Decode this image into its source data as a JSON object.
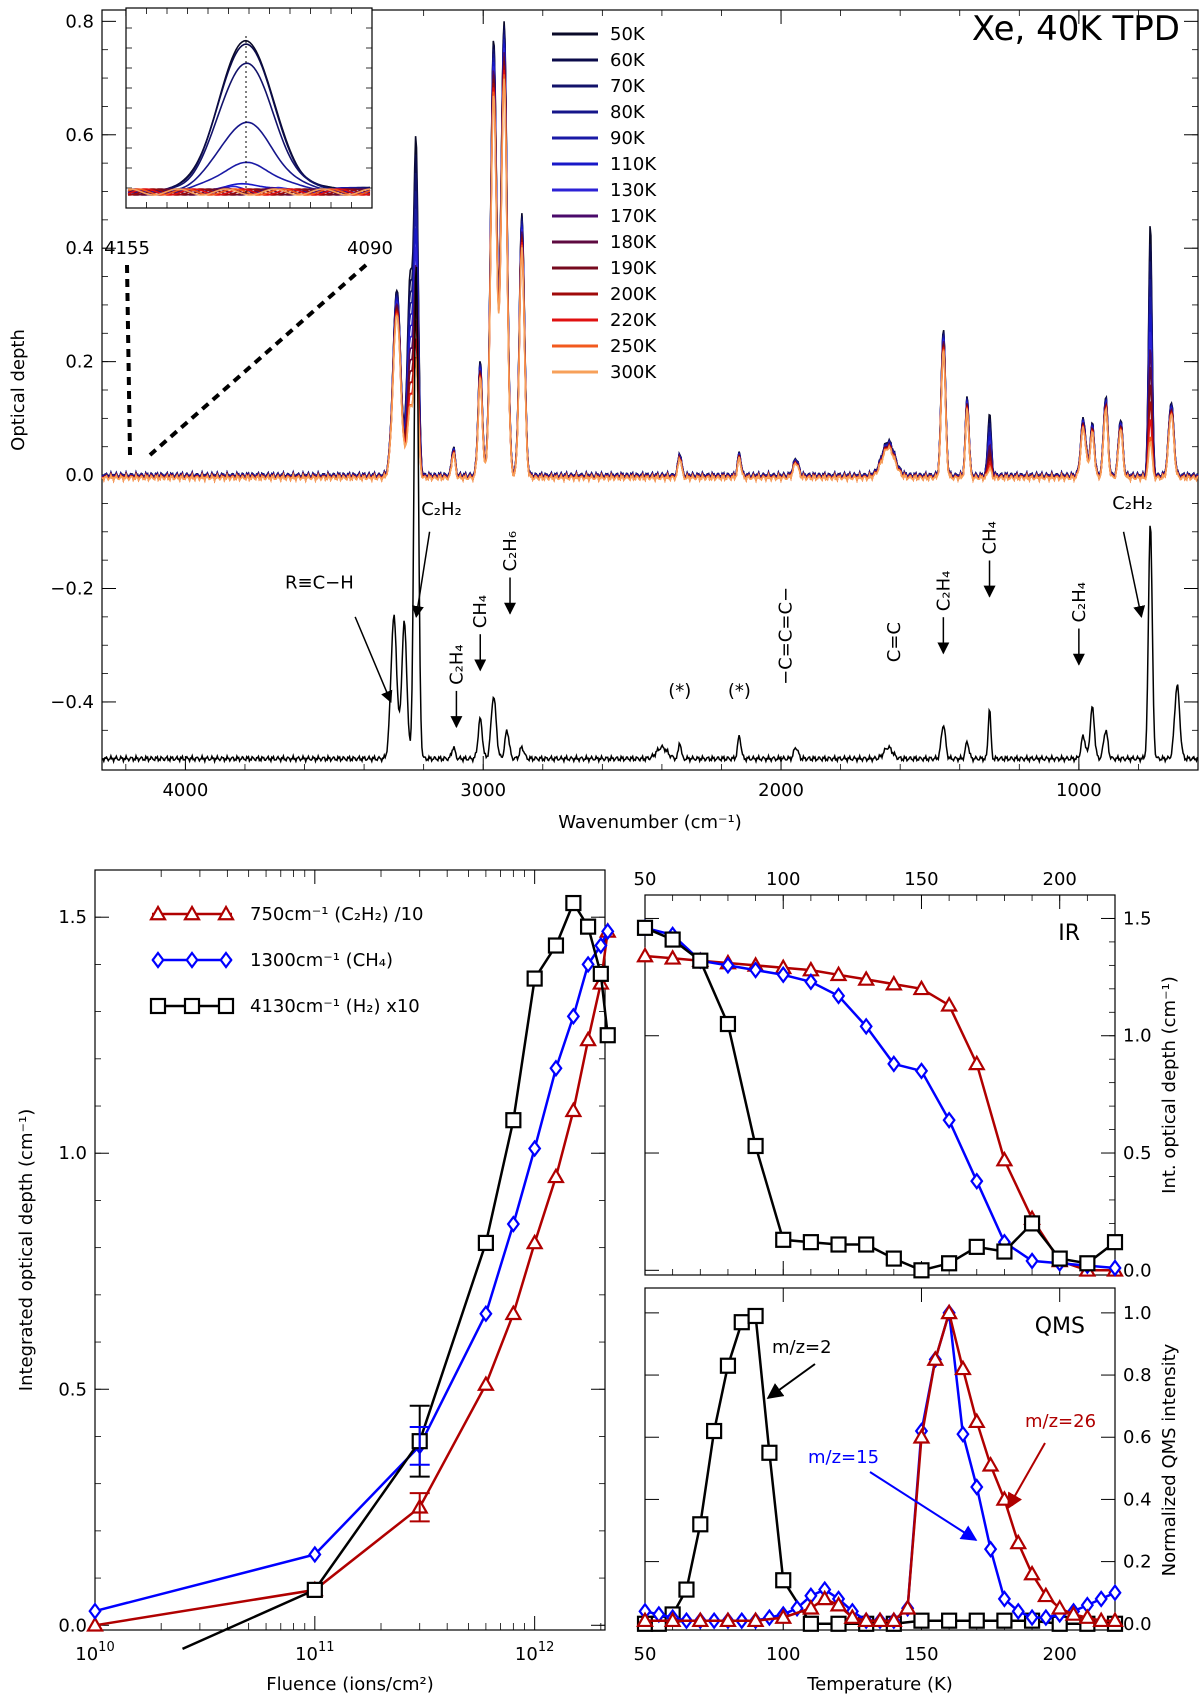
{
  "title": "Xe, 40K TPD",
  "chart_data": [
    {
      "id": "top_spectra",
      "type": "line",
      "xlabel": "Wavenumber (cm⁻¹)",
      "ylabel": "Optical depth",
      "xlim": [
        4280,
        600
      ],
      "ylim": [
        -0.52,
        0.82
      ],
      "xticks": [
        4000,
        3000,
        2000,
        1000
      ],
      "yticks": [
        0.8,
        0.6,
        0.4,
        0.2,
        0.0,
        -0.2,
        -0.4
      ],
      "ytick_labels": [
        "0.8",
        "0.6",
        "0.4",
        "0.2",
        "0.0",
        "−0.2",
        "−0.4"
      ],
      "xtick_labels": [
        "4000",
        "3000",
        "2000",
        "1000"
      ],
      "temperatures": [
        "50K",
        "60K",
        "70K",
        "80K",
        "90K",
        "110K",
        "130K",
        "170K",
        "180K",
        "190K",
        "200K",
        "220K",
        "250K",
        "300K"
      ],
      "colors": [
        "#0a0a28",
        "#0b0b4a",
        "#12126a",
        "#16168a",
        "#1a1aa6",
        "#1818c8",
        "#2c22d6",
        "#4a0a6a",
        "#5e0a40",
        "#760a1e",
        "#a00a0a",
        "#e01010",
        "#f25a1e",
        "#f7a05a"
      ],
      "peaks": [
        {
          "pos": 3290,
          "width": 18,
          "amp": 0.33
        },
        {
          "pos": 3245,
          "width": 14,
          "amp": 0.35
        },
        {
          "pos": 3225,
          "width": 10,
          "amp": 0.55
        },
        {
          "pos": 3100,
          "width": 8,
          "amp": 0.05
        },
        {
          "pos": 3010,
          "width": 10,
          "amp": 0.2
        },
        {
          "pos": 2965,
          "width": 14,
          "amp": 0.77
        },
        {
          "pos": 2930,
          "width": 14,
          "amp": 0.8
        },
        {
          "pos": 2870,
          "width": 12,
          "amp": 0.46
        },
        {
          "pos": 2340,
          "width": 8,
          "amp": 0.04
        },
        {
          "pos": 2140,
          "width": 8,
          "amp": 0.04
        },
        {
          "pos": 1950,
          "width": 12,
          "amp": 0.03
        },
        {
          "pos": 1640,
          "width": 30,
          "amp": 0.06
        },
        {
          "pos": 1455,
          "width": 10,
          "amp": 0.26
        },
        {
          "pos": 1375,
          "width": 8,
          "amp": 0.14
        },
        {
          "pos": 1300,
          "width": 8,
          "amp": 0.11
        },
        {
          "pos": 985,
          "width": 12,
          "amp": 0.1
        },
        {
          "pos": 955,
          "width": 10,
          "amp": 0.09
        },
        {
          "pos": 910,
          "width": 10,
          "amp": 0.14
        },
        {
          "pos": 860,
          "width": 10,
          "amp": 0.1
        },
        {
          "pos": 760,
          "width": 8,
          "amp": 0.45
        },
        {
          "pos": 690,
          "width": 12,
          "amp": 0.13
        }
      ],
      "bottom_spectrum_offset": -0.5,
      "bottom_spectrum_peaks": [
        {
          "pos": 3300,
          "width": 14,
          "amp": 0.25
        },
        {
          "pos": 3265,
          "width": 12,
          "amp": 0.24
        },
        {
          "pos": 3225,
          "width": 10,
          "amp": 0.88
        },
        {
          "pos": 3100,
          "width": 8,
          "amp": 0.02
        },
        {
          "pos": 3010,
          "width": 10,
          "amp": 0.07
        },
        {
          "pos": 2965,
          "width": 12,
          "amp": 0.11
        },
        {
          "pos": 2920,
          "width": 10,
          "amp": 0.05
        },
        {
          "pos": 2870,
          "width": 10,
          "amp": 0.02
        },
        {
          "pos": 2400,
          "width": 25,
          "amp": 0.02
        },
        {
          "pos": 2340,
          "width": 6,
          "amp": 0.03
        },
        {
          "pos": 2140,
          "width": 8,
          "amp": 0.04
        },
        {
          "pos": 1950,
          "width": 10,
          "amp": 0.02
        },
        {
          "pos": 1640,
          "width": 20,
          "amp": 0.02
        },
        {
          "pos": 1455,
          "width": 10,
          "amp": 0.06
        },
        {
          "pos": 1375,
          "width": 8,
          "amp": 0.03
        },
        {
          "pos": 1300,
          "width": 6,
          "amp": 0.09
        },
        {
          "pos": 985,
          "width": 10,
          "amp": 0.04
        },
        {
          "pos": 955,
          "width": 10,
          "amp": 0.09
        },
        {
          "pos": 910,
          "width": 10,
          "amp": 0.05
        },
        {
          "pos": 760,
          "width": 9,
          "amp": 0.42
        },
        {
          "pos": 670,
          "width": 12,
          "amp": 0.13
        }
      ],
      "annotations": [
        {
          "label": "R≡C−H",
          "text_x": 3570,
          "text_y": -0.2,
          "arrow_from": [
            3430,
            -0.25
          ],
          "arrow_to": [
            3310,
            -0.4
          ]
        },
        {
          "label": "C₂H₂",
          "text_x": 3170,
          "text_y": -0.07,
          "arrow_from": [
            3200,
            -0.1
          ],
          "arrow_to": [
            3225,
            -0.25
          ]
        },
        {
          "label": "CH₄",
          "text_x": 2890,
          "text_y": -0.6,
          "arrow_from": [
            1300,
            -0.24
          ],
          "arrow_to": [
            1300,
            -0.35
          ],
          "rotated": true,
          "rx": 1290,
          "ry": -0.12
        },
        {
          "label": "C₂H₂",
          "text_x": 760,
          "text_y": -0.02,
          "arrow_from": [
            845,
            -0.08
          ],
          "arrow_to": [
            780,
            -0.25
          ]
        }
      ],
      "vertical_labels": [
        {
          "label": "C₂H₄",
          "x": 3090,
          "y": -0.37
        },
        {
          "label": "CH₄",
          "x": 3010,
          "y": -0.27
        },
        {
          "label": "C₂H₆",
          "x": 2910,
          "y": -0.17
        },
        {
          "label": "−C=C=C−",
          "x": 1985,
          "y": -0.37
        },
        {
          "label": "C=C",
          "x": 1620,
          "y": -0.33
        },
        {
          "label": "C₂H₄",
          "x": 1455,
          "y": -0.24
        },
        {
          "label": "CH₄",
          "x": 1300,
          "y": -0.14
        },
        {
          "label": "C₂H₄",
          "x": 1000,
          "y": -0.26
        }
      ],
      "star_labels": [
        {
          "label": "(*)",
          "x": 2340
        },
        {
          "label": "(*)",
          "x": 2140
        }
      ],
      "inset": {
        "x_labels": [
          "4155",
          "4090"
        ],
        "x_range": [
          4155,
          4090
        ],
        "center": 4122
      }
    },
    {
      "id": "fluence",
      "type": "line",
      "xlabel": "Fluence (ions/cm²)",
      "ylabel": "Integrated optical depth (cm⁻¹)",
      "xscale": "log",
      "xlim_log10": [
        10,
        12.32
      ],
      "ylim": [
        -0.01,
        1.6
      ],
      "yticks": [
        0.0,
        0.5,
        1.0,
        1.5
      ],
      "ytick_labels": [
        "0.0",
        "0.5",
        "1.0",
        "1.5"
      ],
      "xtick_labels": [
        "10",
        "11",
        "12"
      ],
      "xtick_base": "10",
      "series": [
        {
          "name": "750cm⁻¹ (C₂H₂) /10",
          "color": "#b00000",
          "marker": "triangle",
          "x": [
            10000000000.0,
            100000000000.0,
            300000000000.0,
            600000000000.0,
            800000000000.0,
            1000000000000.0,
            1250000000000.0,
            1500000000000.0,
            1750000000000.0,
            2000000000000.0,
            2150000000000.0
          ],
          "y": [
            0.0,
            0.075,
            0.25,
            0.51,
            0.66,
            0.81,
            0.95,
            1.09,
            1.24,
            1.36,
            1.47
          ]
        },
        {
          "name": "1300cm⁻¹ (CH₄)",
          "color": "#0000ff",
          "marker": "diamond",
          "x": [
            10000000000.0,
            100000000000.0,
            300000000000.0,
            600000000000.0,
            800000000000.0,
            1000000000000.0,
            1250000000000.0,
            1500000000000.0,
            1750000000000.0,
            2000000000000.0,
            2150000000000.0
          ],
          "y": [
            0.03,
            0.15,
            0.38,
            0.66,
            0.85,
            1.01,
            1.18,
            1.29,
            1.4,
            1.44,
            1.47
          ]
        },
        {
          "name": "4130cm⁻¹ (H₂) x10",
          "color": "#000000",
          "marker": "square",
          "x": [
            25000000000.0,
            100000000000.0,
            300000000000.0,
            600000000000.0,
            800000000000.0,
            1000000000000.0,
            1250000000000.0,
            1500000000000.0,
            1750000000000.0,
            2000000000000.0,
            2150000000000.0
          ],
          "y": [
            -0.05,
            0.075,
            0.39,
            0.81,
            1.07,
            1.37,
            1.44,
            1.53,
            1.48,
            1.38,
            1.25
          ],
          "markers_from": 1
        }
      ],
      "error_bars": [
        {
          "x": 300000000000.0,
          "y": 0.39,
          "err": 0.075,
          "color": "#000000"
        },
        {
          "x": 300000000000.0,
          "y": 0.38,
          "err": 0.04,
          "color": "#0000ff"
        },
        {
          "x": 300000000000.0,
          "y": 0.25,
          "err": 0.03,
          "color": "#b00000"
        }
      ]
    },
    {
      "id": "ir_temperature",
      "type": "line",
      "panel_label": "IR",
      "xlabel": "",
      "ylabel": "Int. optical depth (cm⁻¹)",
      "xlim": [
        50,
        220
      ],
      "ylim": [
        -0.02,
        1.6
      ],
      "xticks": [
        50,
        100,
        150,
        200
      ],
      "xtick_labels": [
        "50",
        "100",
        "150",
        "200"
      ],
      "yticks": [
        0.0,
        0.5,
        1.0,
        1.5
      ],
      "ytick_labels": [
        "0.0",
        "0.5",
        "1.0",
        "1.5"
      ],
      "series": [
        {
          "name": "C₂H₂",
          "color": "#b00000",
          "marker": "triangle",
          "x": [
            50,
            60,
            70,
            80,
            90,
            100,
            110,
            120,
            130,
            140,
            150,
            160,
            170,
            180,
            190,
            200,
            210,
            220
          ],
          "y": [
            1.34,
            1.33,
            1.32,
            1.31,
            1.3,
            1.29,
            1.28,
            1.26,
            1.24,
            1.22,
            1.2,
            1.13,
            0.88,
            0.47,
            0.22,
            0.04,
            0.0,
            0.0
          ]
        },
        {
          "name": "CH₄",
          "color": "#0000ff",
          "marker": "diamond",
          "x": [
            50,
            60,
            70,
            80,
            90,
            100,
            110,
            120,
            130,
            140,
            150,
            160,
            170,
            180,
            190,
            200,
            210,
            220
          ],
          "y": [
            1.46,
            1.43,
            1.32,
            1.3,
            1.28,
            1.26,
            1.23,
            1.17,
            1.04,
            0.88,
            0.85,
            0.64,
            0.38,
            0.12,
            0.04,
            0.03,
            0.02,
            0.01
          ]
        },
        {
          "name": "H₂",
          "color": "#000000",
          "marker": "square",
          "x": [
            50,
            60,
            70,
            80,
            90,
            100,
            110,
            120,
            130,
            140,
            150,
            160,
            170,
            180,
            190,
            200,
            210,
            220
          ],
          "y": [
            1.46,
            1.41,
            1.32,
            1.05,
            0.53,
            0.13,
            0.12,
            0.11,
            0.11,
            0.05,
            0.0,
            0.03,
            0.1,
            0.08,
            0.2,
            0.05,
            0.03,
            0.12
          ]
        }
      ]
    },
    {
      "id": "qms_temperature",
      "type": "line",
      "panel_label": "QMS",
      "xlabel": "Temperature (K)",
      "ylabel": "Normalized QMS intensity",
      "xlim": [
        50,
        220
      ],
      "ylim": [
        -0.02,
        1.08
      ],
      "xticks": [
        50,
        100,
        150,
        200
      ],
      "xtick_labels": [
        "50",
        "100",
        "150",
        "200"
      ],
      "yticks": [
        0.0,
        0.2,
        0.4,
        0.6,
        0.8,
        1.0
      ],
      "ytick_labels": [
        "0.0",
        "0.2",
        "0.4",
        "0.6",
        "0.8",
        "1.0"
      ],
      "series": [
        {
          "name": "m/z=2",
          "color": "#000000",
          "marker": "square",
          "x": [
            50,
            55,
            60,
            65,
            70,
            75,
            80,
            85,
            90,
            95,
            100,
            110,
            120,
            130,
            140,
            150,
            160,
            170,
            180,
            190,
            200,
            210,
            220
          ],
          "y": [
            0.0,
            0.0,
            0.03,
            0.11,
            0.32,
            0.62,
            0.83,
            0.97,
            0.99,
            0.55,
            0.14,
            0.0,
            0.0,
            0.0,
            0.0,
            0.01,
            0.01,
            0.01,
            0.01,
            0.01,
            0.0,
            0.0,
            0.0
          ]
        },
        {
          "name": "m/z=15",
          "color": "#0000ff",
          "marker": "diamond",
          "x": [
            50,
            55,
            60,
            65,
            70,
            75,
            80,
            85,
            90,
            95,
            100,
            105,
            110,
            115,
            120,
            125,
            130,
            135,
            140,
            145,
            150,
            155,
            160,
            165,
            170,
            175,
            180,
            185,
            190,
            195,
            200,
            205,
            210,
            215,
            220
          ],
          "y": [
            0.04,
            0.03,
            0.02,
            0.01,
            0.01,
            0.01,
            0.01,
            0.01,
            0.01,
            0.02,
            0.03,
            0.05,
            0.09,
            0.11,
            0.08,
            0.04,
            0.01,
            0.01,
            0.01,
            0.05,
            0.62,
            0.85,
            1.0,
            0.61,
            0.44,
            0.24,
            0.08,
            0.04,
            0.02,
            0.02,
            0.03,
            0.04,
            0.06,
            0.08,
            0.1
          ]
        },
        {
          "name": "m/z=26",
          "color": "#b00000",
          "marker": "triangle",
          "x": [
            50,
            60,
            70,
            80,
            90,
            100,
            110,
            115,
            120,
            125,
            130,
            135,
            140,
            145,
            150,
            155,
            160,
            165,
            170,
            175,
            180,
            185,
            190,
            195,
            200,
            205,
            210,
            215,
            220
          ],
          "y": [
            0.01,
            0.01,
            0.01,
            0.01,
            0.01,
            0.02,
            0.05,
            0.08,
            0.06,
            0.02,
            0.01,
            0.01,
            0.01,
            0.05,
            0.6,
            0.85,
            1.0,
            0.82,
            0.65,
            0.51,
            0.4,
            0.26,
            0.16,
            0.09,
            0.05,
            0.03,
            0.02,
            0.01,
            0.01
          ]
        }
      ],
      "labels": [
        {
          "text": "m/z=2",
          "color": "#000000"
        },
        {
          "text": "m/z=15",
          "color": "#0000ff"
        },
        {
          "text": "m/z=26",
          "color": "#b00000"
        }
      ]
    }
  ]
}
